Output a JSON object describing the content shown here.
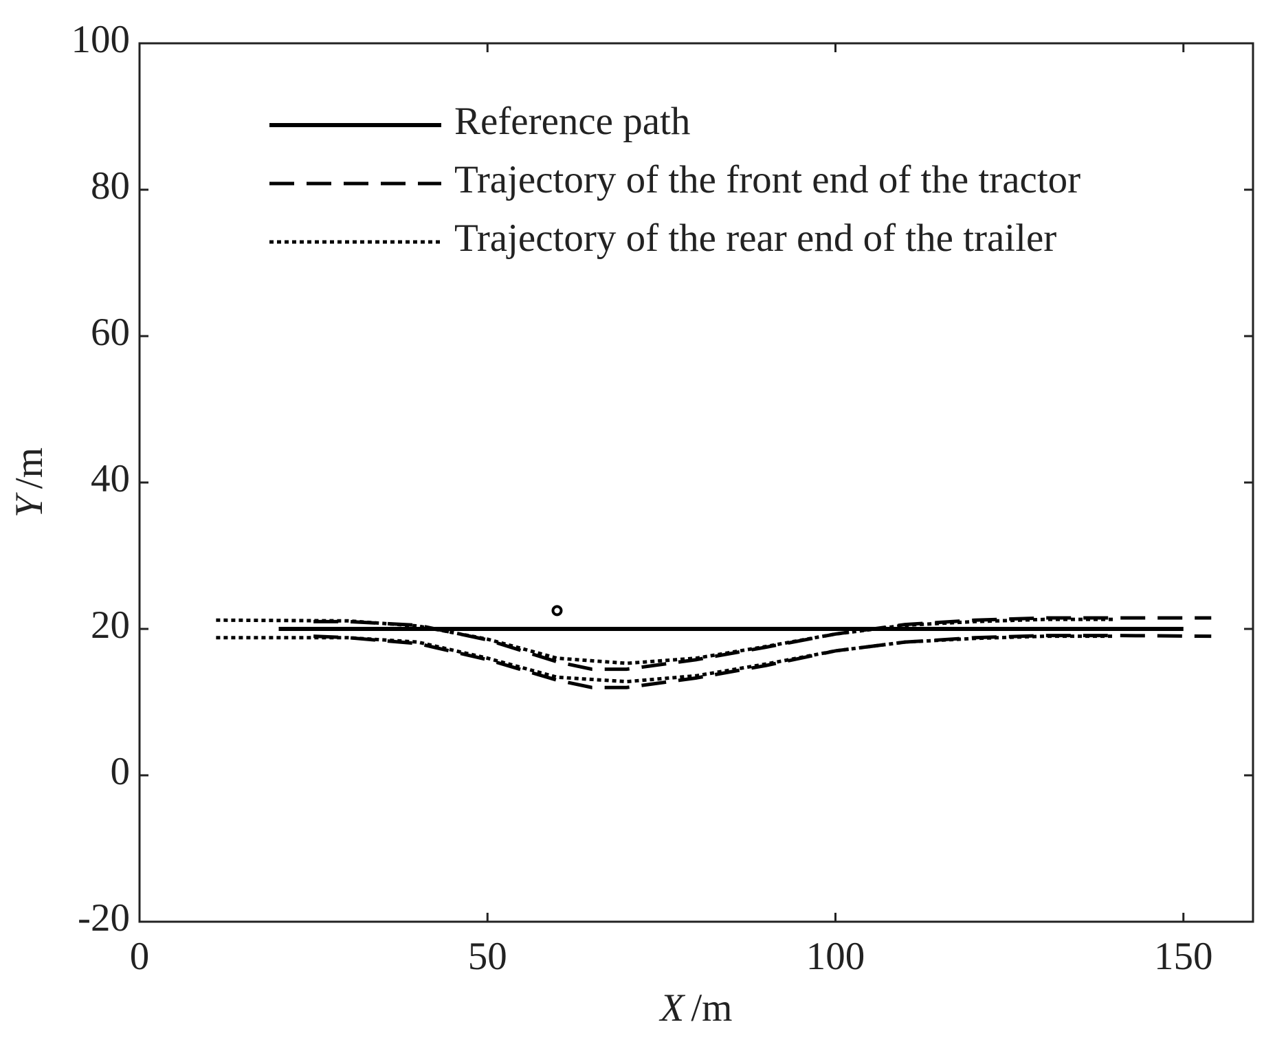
{
  "chart_data": {
    "type": "line",
    "xlabel": {
      "var": "X",
      "unit": "/m"
    },
    "ylabel": {
      "var": "Y",
      "unit": "/m"
    },
    "xlim": [
      0,
      160
    ],
    "xticks": [
      0,
      50,
      100,
      150
    ],
    "ylim": [
      -20,
      100
    ],
    "yticks": [
      -20,
      0,
      20,
      40,
      60,
      80,
      100
    ],
    "legend": "top",
    "marker": {
      "x": 60,
      "y": 22.5,
      "color": "#000000"
    },
    "series": [
      {
        "name": "Reference path",
        "color": "#000000",
        "style": "solid",
        "edges": [
          {
            "x": [
              20,
              150
            ],
            "values": [
              20,
              20
            ]
          }
        ]
      },
      {
        "name": "Trajectory of the front end of the tractor",
        "color": "#000000",
        "style": "dashed",
        "edges": [
          {
            "x": [
              25,
              30,
              40,
              50,
              60,
              65,
              70,
              80,
              90,
              100,
              110,
              120,
              130,
              140,
              154
            ],
            "values": [
              21,
              21,
              20.5,
              18.5,
              15.5,
              14.5,
              14.5,
              15.8,
              17.5,
              19.3,
              20.6,
              21.2,
              21.5,
              21.5,
              21.5
            ]
          },
          {
            "x": [
              25,
              30,
              40,
              50,
              60,
              65,
              70,
              80,
              90,
              100,
              110,
              120,
              130,
              140,
              154
            ],
            "values": [
              19,
              18.8,
              18,
              15.8,
              13,
              12,
              12,
              13.3,
              15,
              17,
              18.2,
              18.8,
              19.1,
              19.1,
              19
            ]
          }
        ]
      },
      {
        "name": "Trajectory of the rear end of the trailer",
        "color": "#000000",
        "style": "dotted",
        "edges": [
          {
            "x": [
              11,
              30,
              40,
              50,
              60,
              70,
              80,
              90,
              100,
              110,
              120,
              130,
              140
            ],
            "values": [
              21.2,
              21.1,
              20.4,
              18.6,
              16,
              15.3,
              16,
              17.6,
              19.3,
              20.5,
              21,
              21.3,
              21.3
            ]
          },
          {
            "x": [
              11,
              30,
              40,
              50,
              60,
              70,
              80,
              90,
              100,
              110,
              120,
              130,
              140
            ],
            "values": [
              18.8,
              18.8,
              18.2,
              16,
              13.4,
              12.8,
              13.6,
              15.2,
              17,
              18.2,
              18.7,
              19,
              19
            ]
          }
        ]
      }
    ]
  }
}
